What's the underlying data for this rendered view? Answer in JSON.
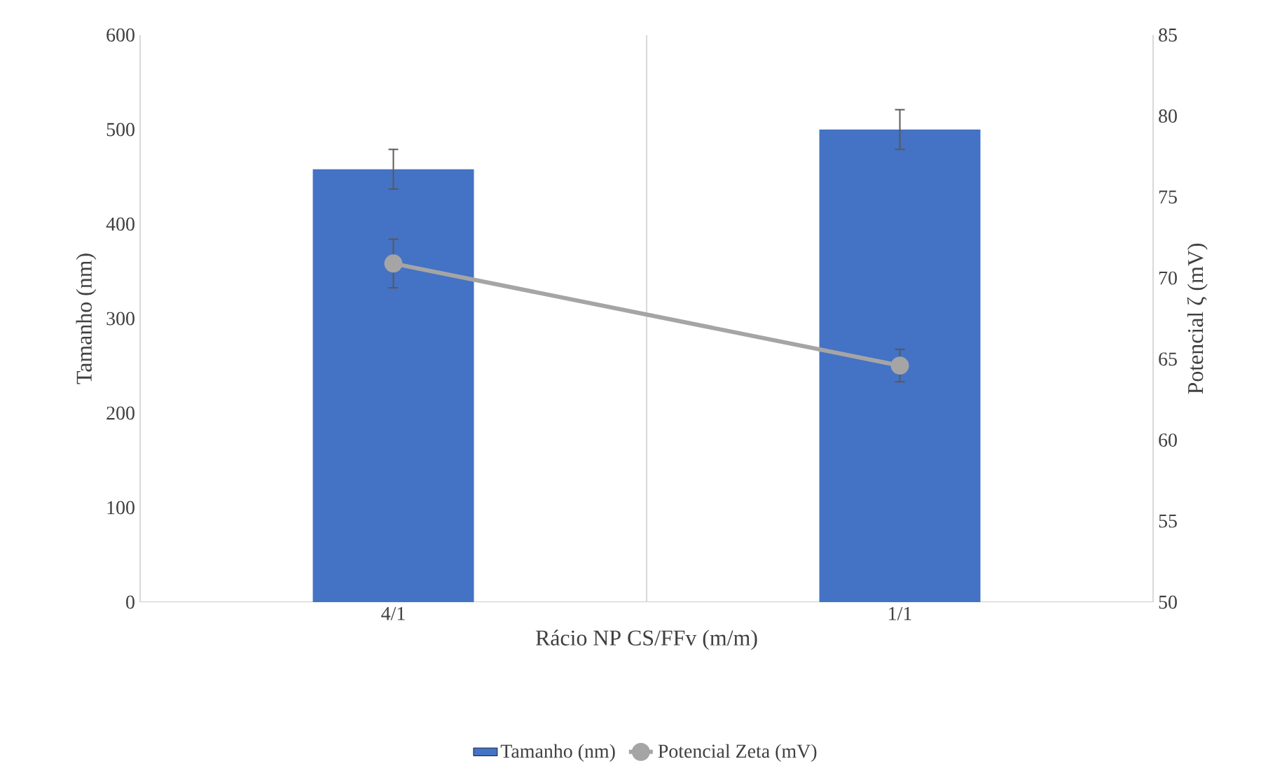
{
  "chart_data": {
    "type": "bar",
    "xlabel": "Rácio NP CS/FFv (m/m)",
    "ylabel": "Tamanho (nm)",
    "y2label": "Potencial ζ (mV)",
    "categories": [
      "4/1",
      "1/1"
    ],
    "series": [
      {
        "name": "Tamanho (nm)",
        "color": "#4472c4",
        "values": [
          458,
          500
        ],
        "errors": [
          21,
          21
        ]
      },
      {
        "name": "Potencial Zeta (mV)",
        "type": "line",
        "axis": "y2",
        "color": "#a5a5a5",
        "values": [
          70.9,
          64.6
        ],
        "errors": [
          1.5,
          1
        ]
      }
    ],
    "ylim": [
      0,
      600
    ],
    "yticks": [
      0,
      100,
      200,
      300,
      400,
      500,
      600
    ],
    "y2lim": [
      50,
      85
    ],
    "y2ticks": [
      50,
      55,
      60,
      65,
      70,
      75,
      80,
      85
    ],
    "grid": "x",
    "legend": "bottom",
    "marker": "circle"
  }
}
